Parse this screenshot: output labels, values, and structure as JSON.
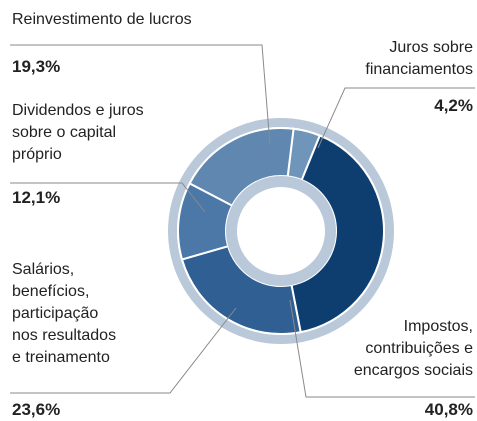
{
  "chart_data": {
    "type": "donut",
    "categories": [
      "Juros sobre financiamentos",
      "Impostos, contribuições e encargos sociais",
      "Salários, benefícios, participação nos resultados e treinamento",
      "Dividendos e juros sobre o capital próprio",
      "Reinvestimento de lucros"
    ],
    "values": [
      4.2,
      40.8,
      23.6,
      12.1,
      19.3
    ],
    "value_labels": [
      "4,2%",
      "40,8%",
      "23,6%",
      "12,1%",
      "19,3%"
    ],
    "colors": [
      "#7095bb",
      "#0e3d70",
      "#2f5f93",
      "#4b78a6",
      "#5f87b0"
    ]
  }
}
